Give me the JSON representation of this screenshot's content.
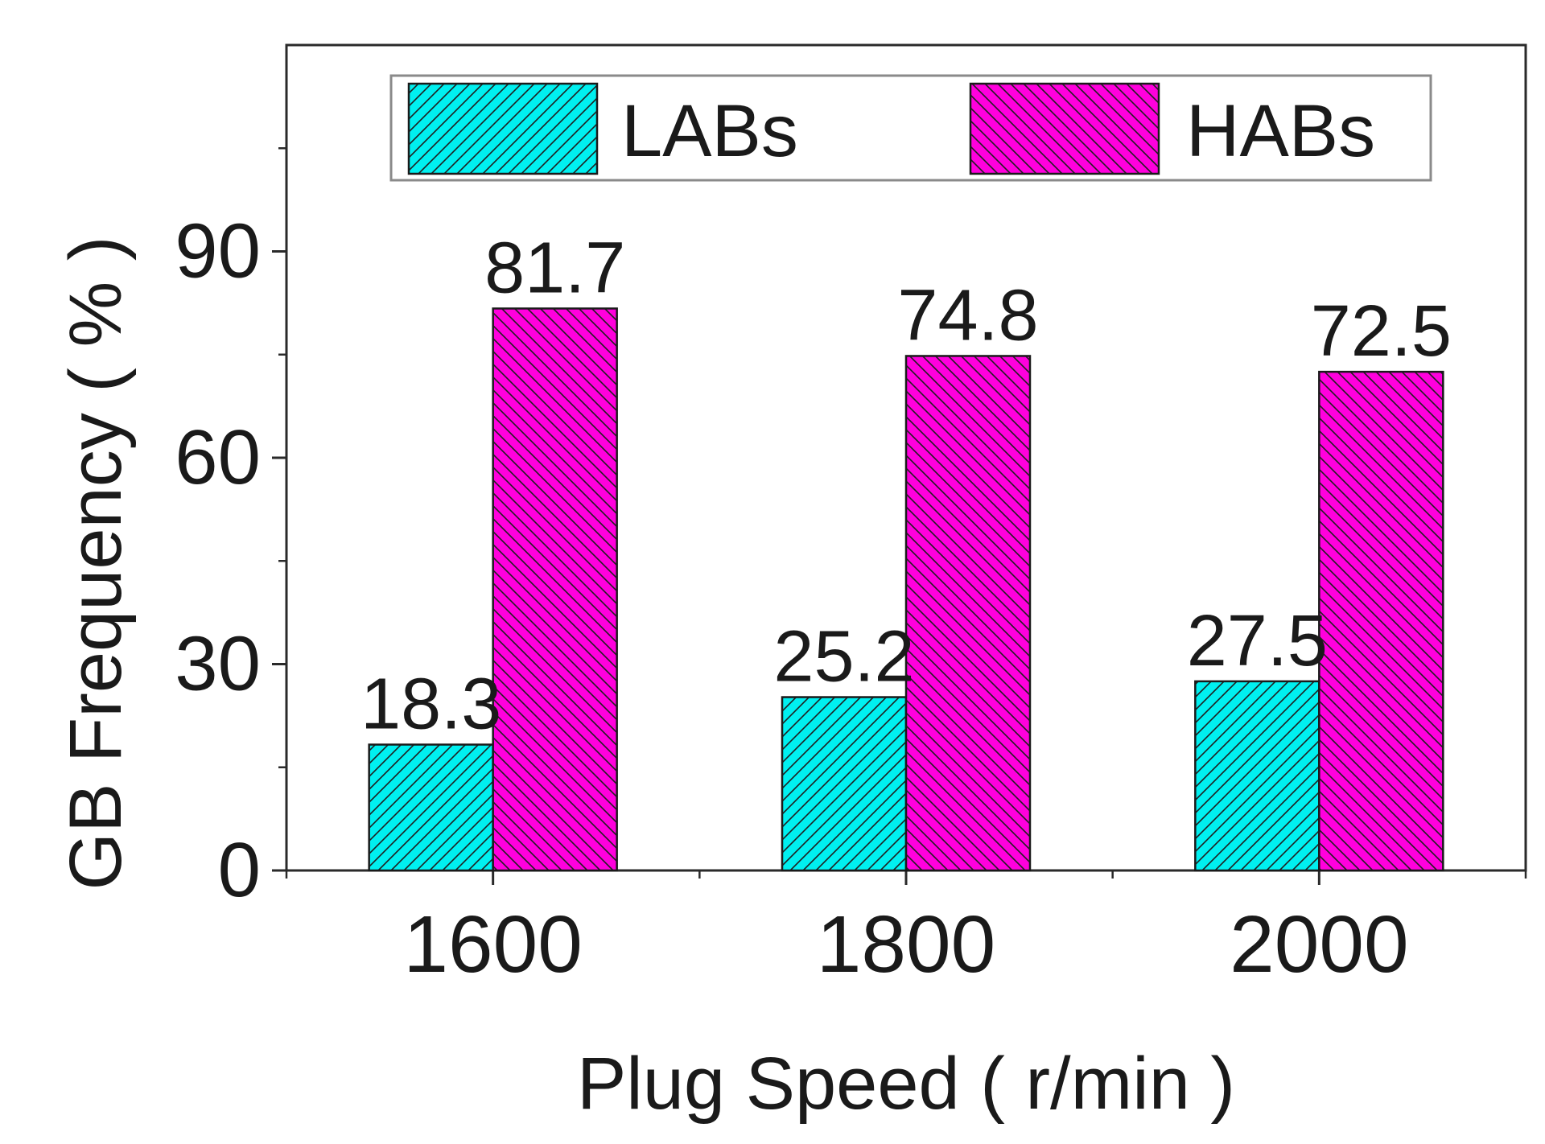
{
  "chart_data": {
    "type": "bar",
    "xlabel": "Plug Speed ( r/min )",
    "ylabel": "GB Frequency ( % )",
    "categories": [
      "1600",
      "1800",
      "2000"
    ],
    "ylim": [
      0,
      120
    ],
    "yticks": [
      0,
      30,
      60,
      90
    ],
    "yticks_minor": [
      15,
      45,
      75,
      105
    ],
    "legend_position": "top",
    "grid": false,
    "series": [
      {
        "name": "LABs",
        "values": [
          18.3,
          25.2,
          27.5
        ],
        "labels": [
          "18.3",
          "25.2",
          "27.5"
        ],
        "color": "#00f0f0",
        "hatch": "forward-diagonal"
      },
      {
        "name": "HABs",
        "values": [
          81.7,
          74.8,
          72.5
        ],
        "labels": [
          "81.7",
          "74.8",
          "72.5"
        ],
        "color": "#ff00dd",
        "hatch": "back-diagonal"
      }
    ]
  }
}
